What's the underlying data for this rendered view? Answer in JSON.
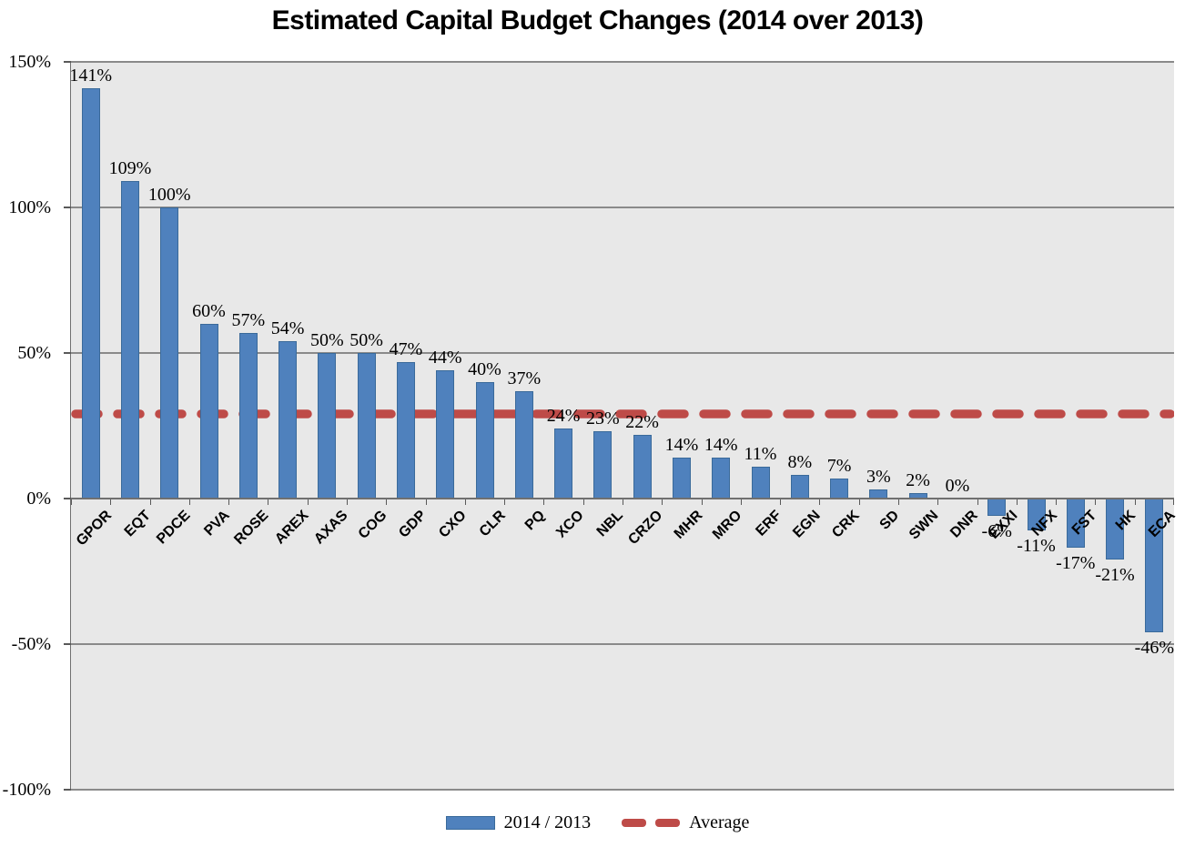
{
  "title": "Estimated Capital Budget Changes (2014 over 2013)",
  "chart_data": {
    "type": "bar",
    "categories": [
      "GPOR",
      "EQT",
      "PDCE",
      "PVA",
      "ROSE",
      "AREX",
      "AXAS",
      "COG",
      "GDP",
      "CXO",
      "CLR",
      "PQ",
      "XCO",
      "NBL",
      "CRZO",
      "MHR",
      "MRO",
      "ERF",
      "EGN",
      "CRK",
      "SD",
      "SWN",
      "DNR",
      "EXXI",
      "NFX",
      "FST",
      "HK",
      "ECA"
    ],
    "series": [
      {
        "name": "2014 / 2013",
        "values": [
          141,
          109,
          100,
          60,
          57,
          54,
          50,
          50,
          47,
          44,
          40,
          37,
          24,
          23,
          22,
          14,
          14,
          11,
          8,
          7,
          3,
          2,
          0,
          -6,
          -11,
          -17,
          -21,
          -46
        ],
        "labels": [
          "141%",
          "109%",
          "100%",
          "60%",
          "57%",
          "54%",
          "50%",
          "50%",
          "47%",
          "44%",
          "40%",
          "37%",
          "24%",
          "23%",
          "22%",
          "14%",
          "14%",
          "11%",
          "8%",
          "7%",
          "3%",
          "2%",
          "0%",
          "-6%",
          "-11%",
          "-17%",
          "-21%",
          "-46%"
        ]
      }
    ],
    "average": {
      "name": "Average",
      "value": 29.14
    },
    "ylim": [
      -100,
      150
    ],
    "yticks": [
      150,
      100,
      50,
      0,
      -50,
      -100
    ],
    "ytick_labels": [
      "150%",
      "100%",
      "50%",
      "0%",
      "-50%",
      "-100%"
    ],
    "grid": true,
    "legend_position": "bottom",
    "colors": {
      "bar_fill": "#4F81BD",
      "bar_border": "#3A6A9A",
      "average_line": "#BE4B48",
      "plot_background": "#E8E8E8",
      "gridline": "#8A8A8A",
      "axis": "#707070"
    }
  },
  "legend": {
    "series_label": "2014 / 2013",
    "average_label": "Average"
  }
}
